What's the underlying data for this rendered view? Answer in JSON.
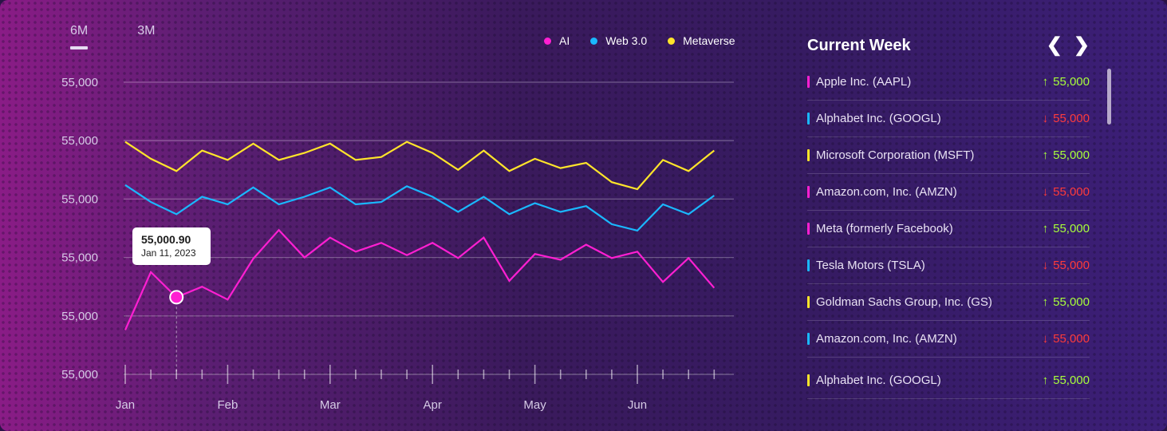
{
  "range_tabs": [
    {
      "label": "6M",
      "active": true
    },
    {
      "label": "3M",
      "active": false
    }
  ],
  "legend": [
    {
      "label": "AI",
      "color": "#ff1fd2"
    },
    {
      "label": "Web 3.0",
      "color": "#1ab8ff"
    },
    {
      "label": "Metaverse",
      "color": "#ffe52a"
    }
  ],
  "tooltip": {
    "value": "55,000.90",
    "date": "Jan 11, 2023"
  },
  "chart_data": {
    "type": "line",
    "title": "",
    "xlabel": "",
    "ylabel": "",
    "y_tick_labels": [
      "55,000",
      "55,000",
      "55,000",
      "55,000",
      "55,000",
      "55,000"
    ],
    "ylim": [
      0,
      5
    ],
    "x_tick_labels": [
      "Jan",
      "Feb",
      "Mar",
      "Apr",
      "May",
      "Jun"
    ],
    "grid": true,
    "legend_position": "top-right",
    "highlight": {
      "series": "AI",
      "index": 2
    },
    "series": [
      {
        "name": "Metaverse",
        "color": "#ffe52a",
        "values": [
          3.98,
          3.69,
          3.48,
          3.83,
          3.67,
          3.95,
          3.67,
          3.79,
          3.95,
          3.67,
          3.72,
          3.98,
          3.79,
          3.5,
          3.83,
          3.48,
          3.69,
          3.53,
          3.62,
          3.29,
          3.17,
          3.67,
          3.48,
          3.83
        ]
      },
      {
        "name": "Web 3.0",
        "color": "#1ab8ff",
        "values": [
          3.24,
          2.95,
          2.74,
          3.04,
          2.91,
          3.2,
          2.91,
          3.04,
          3.2,
          2.91,
          2.95,
          3.22,
          3.04,
          2.78,
          3.04,
          2.74,
          2.93,
          2.78,
          2.88,
          2.57,
          2.46,
          2.91,
          2.74,
          3.06
        ]
      },
      {
        "name": "AI",
        "color": "#ff1fd2",
        "values": [
          0.76,
          1.75,
          1.32,
          1.5,
          1.28,
          1.98,
          2.47,
          2.0,
          2.34,
          2.1,
          2.25,
          2.04,
          2.25,
          1.99,
          2.34,
          1.6,
          2.06,
          1.96,
          2.22,
          1.99,
          2.1,
          1.58,
          1.99,
          1.48
        ]
      }
    ]
  },
  "panel": {
    "title": "Current Week",
    "prev_icon": "chevron-left-icon",
    "next_icon": "chevron-right-icon",
    "up_color": "#a8ff3a",
    "down_color": "#ff3b3b",
    "stocks": [
      {
        "name": "Apple Inc. (AAPL)",
        "value": "55,000",
        "direction": "up",
        "color": "#ff1fd2"
      },
      {
        "name": "Alphabet Inc. (GOOGL)",
        "value": "55,000",
        "direction": "down",
        "color": "#1ab8ff"
      },
      {
        "name": "Microsoft Corporation (MSFT)",
        "value": "55,000",
        "direction": "up",
        "color": "#ffe52a"
      },
      {
        "name": "Amazon.com, Inc. (AMZN)",
        "value": "55,000",
        "direction": "down",
        "color": "#ff1fd2"
      },
      {
        "name": "Meta (formerly Facebook)",
        "value": "55,000",
        "direction": "up",
        "color": "#ff1fd2"
      },
      {
        "name": "Tesla Motors (TSLA)",
        "value": "55,000",
        "direction": "down",
        "color": "#1ab8ff"
      },
      {
        "name": "Goldman Sachs Group, Inc. (GS)",
        "value": "55,000",
        "direction": "up",
        "color": "#ffe52a"
      },
      {
        "name": "Amazon.com, Inc. (AMZN)",
        "value": "55,000",
        "direction": "down",
        "color": "#1ab8ff"
      },
      {
        "name": "Alphabet Inc. (GOOGL)",
        "value": "55,000",
        "direction": "up",
        "color": "#ffe52a"
      }
    ]
  }
}
